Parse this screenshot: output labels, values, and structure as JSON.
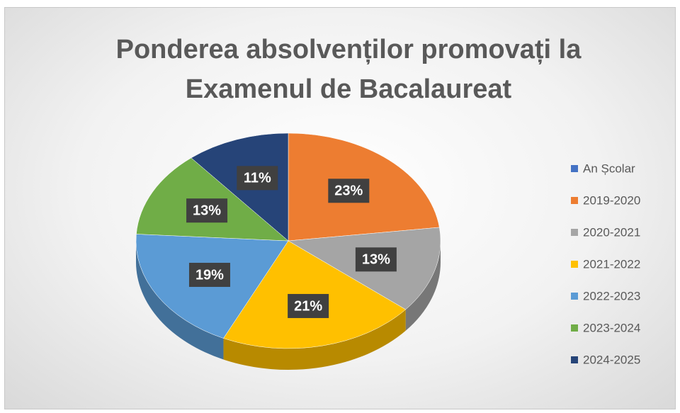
{
  "chart_data": {
    "type": "pie",
    "title": "Ponderea absolvenților promovați la Examenul de Bacalaureat",
    "categories": [
      "An Școlar",
      "2019-2020",
      "2020-2021",
      "2021-2022",
      "2022-2023",
      "2023-2024",
      "2024-2025"
    ],
    "values": [
      0,
      23,
      13,
      21,
      19,
      13,
      11
    ],
    "value_labels": [
      null,
      "23%",
      "13%",
      "21%",
      "19%",
      "13%",
      "11%"
    ],
    "colors": [
      "#4472c4",
      "#ed7d31",
      "#a5a5a5",
      "#ffc000",
      "#5b9bd5",
      "#70ad47",
      "#264478"
    ],
    "legend": "right"
  }
}
